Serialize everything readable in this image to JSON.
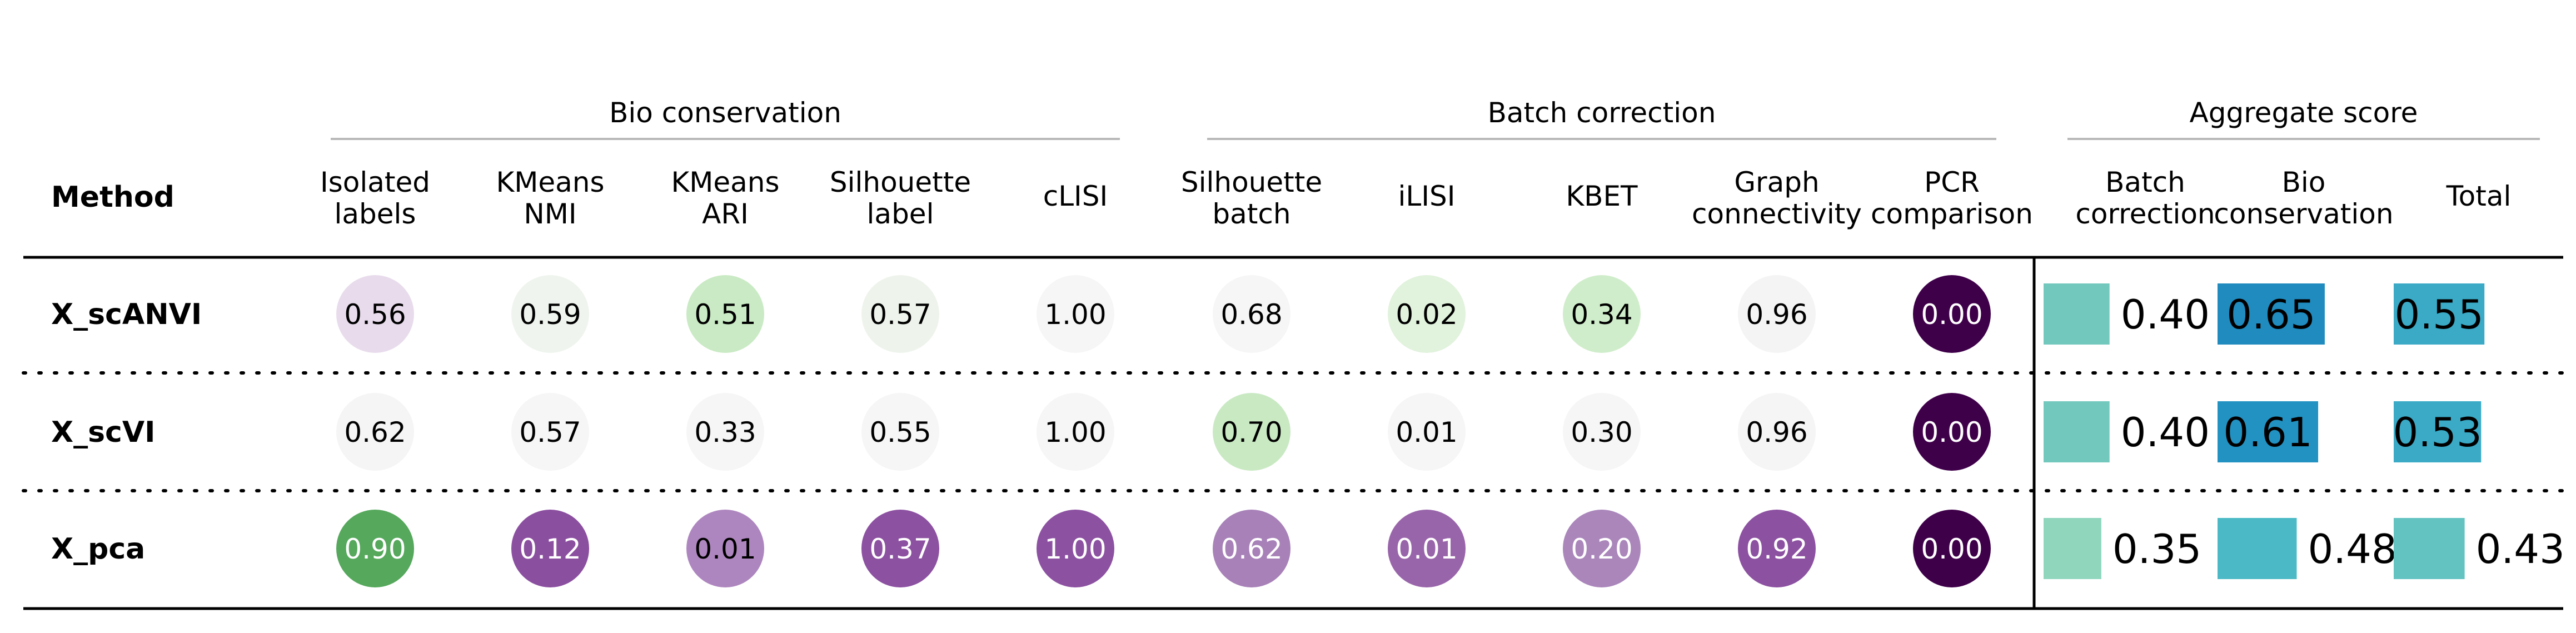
{
  "chart_data": {
    "type": "table",
    "method_header": "Method",
    "groups": [
      {
        "title": "Bio conservation",
        "columns": [
          "Isolated\nlabels",
          "KMeans\nNMI",
          "KMeans\nARI",
          "Silhouette\nlabel",
          "cLISI"
        ]
      },
      {
        "title": "Batch correction",
        "columns": [
          "Silhouette\nbatch",
          "iLISI",
          "KBET",
          "Graph\nconnectivity",
          "PCR\ncomparison"
        ]
      },
      {
        "title": "Aggregate score",
        "columns": [
          "Batch\ncorrection",
          "Bio\nconservation",
          "Total"
        ]
      }
    ],
    "rows": [
      {
        "method": "X_scANVI",
        "metrics": [
          0.56,
          0.59,
          0.51,
          0.57,
          1.0,
          0.68,
          0.02,
          0.34,
          0.96,
          0.0
        ],
        "metric_colors": [
          "#e8dcec",
          "#eff5ee",
          "#c9eac4",
          "#eef4ec",
          "#f6f6f6",
          "#f6f6f6",
          "#e1f2dd",
          "#d0edcb",
          "#f4f4f4",
          "#3f004a"
        ],
        "aggregate": [
          0.4,
          0.65,
          0.55
        ],
        "aggregate_colors": [
          "#72c8bd",
          "#1f8bbf",
          "#3aaac7"
        ]
      },
      {
        "method": "X_scVI",
        "metrics": [
          0.62,
          0.57,
          0.33,
          0.55,
          1.0,
          0.7,
          0.01,
          0.3,
          0.96,
          0.0
        ],
        "metric_colors": [
          "#f5f5f5",
          "#f6f6f6",
          "#f6f6f6",
          "#f6f6f6",
          "#f6f6f6",
          "#c9e9c3",
          "#f6f6f6",
          "#f6f6f6",
          "#f5f5f5",
          "#3f004a"
        ],
        "aggregate": [
          0.4,
          0.61,
          0.53
        ],
        "aggregate_colors": [
          "#72c8bd",
          "#2292c2",
          "#3aaac7"
        ]
      },
      {
        "method": "X_pca",
        "metrics": [
          0.9,
          0.12,
          0.01,
          0.37,
          1.0,
          0.62,
          0.01,
          0.2,
          0.92,
          0.0
        ],
        "metric_colors": [
          "#55a85c",
          "#8b4fa0",
          "#ae86bf",
          "#8c51a1",
          "#8c51a1",
          "#a781b8",
          "#9965aa",
          "#aa86bb",
          "#8c51a1",
          "#3f004a"
        ],
        "aggregate": [
          0.35,
          0.48,
          0.43
        ],
        "aggregate_colors": [
          "#8fd6bd",
          "#4bbac6",
          "#63c3c1"
        ]
      }
    ],
    "dark_cell_colors": [
      "#55a85c",
      "#8b4fa0",
      "#8c51a1",
      "#a781b8",
      "#9965aa",
      "#aa86bb",
      "#3f004a"
    ]
  }
}
